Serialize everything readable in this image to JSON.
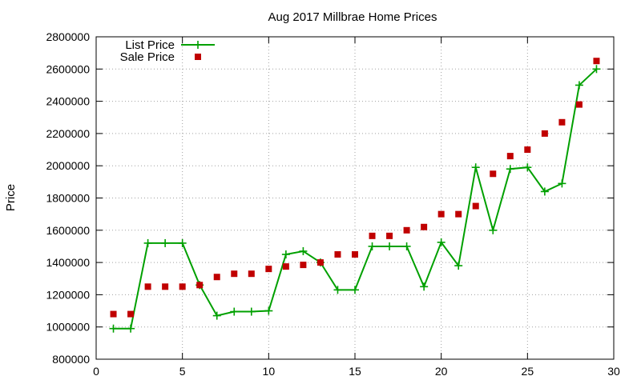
{
  "chart_data": {
    "type": "line",
    "title": "Aug 2017 Millbrae Home Prices",
    "xlabel": "",
    "ylabel": "Price",
    "xlim": [
      0,
      30
    ],
    "ylim": [
      800000,
      2800000
    ],
    "xticks": [
      0,
      5,
      10,
      15,
      20,
      25,
      30
    ],
    "yticks": [
      800000,
      1000000,
      1200000,
      1400000,
      1600000,
      1800000,
      2000000,
      2200000,
      2400000,
      2600000,
      2800000
    ],
    "grid": true,
    "legend_position": "top-left",
    "series": [
      {
        "name": "List Price",
        "style": "line-points",
        "color": "#00a000",
        "x": [
          1,
          2,
          3,
          4,
          5,
          6,
          7,
          8,
          9,
          10,
          11,
          12,
          13,
          14,
          15,
          16,
          17,
          18,
          19,
          20,
          21,
          22,
          23,
          24,
          25,
          26,
          27,
          28,
          29
        ],
        "y": [
          990000,
          990000,
          1520000,
          1520000,
          1520000,
          1260000,
          1070000,
          1095000,
          1095000,
          1100000,
          1450000,
          1470000,
          1400000,
          1230000,
          1230000,
          1500000,
          1500000,
          1500000,
          1250000,
          1525000,
          1380000,
          1990000,
          1600000,
          1980000,
          1990000,
          1840000,
          1890000,
          2500000,
          2600000
        ]
      },
      {
        "name": "Sale Price",
        "style": "points",
        "color": "#c00000",
        "x": [
          1,
          2,
          3,
          4,
          5,
          6,
          7,
          8,
          9,
          10,
          11,
          12,
          13,
          14,
          15,
          16,
          17,
          18,
          19,
          20,
          21,
          22,
          23,
          24,
          25,
          26,
          27,
          28,
          29
        ],
        "y": [
          1080000,
          1080000,
          1250000,
          1250000,
          1250000,
          1260000,
          1310000,
          1330000,
          1330000,
          1360000,
          1375000,
          1385000,
          1400000,
          1450000,
          1450000,
          1565000,
          1565000,
          1600000,
          1620000,
          1700000,
          1700000,
          1750000,
          1950000,
          2060000,
          2100000,
          2200000,
          2270000,
          2380000,
          2650000
        ]
      }
    ]
  }
}
